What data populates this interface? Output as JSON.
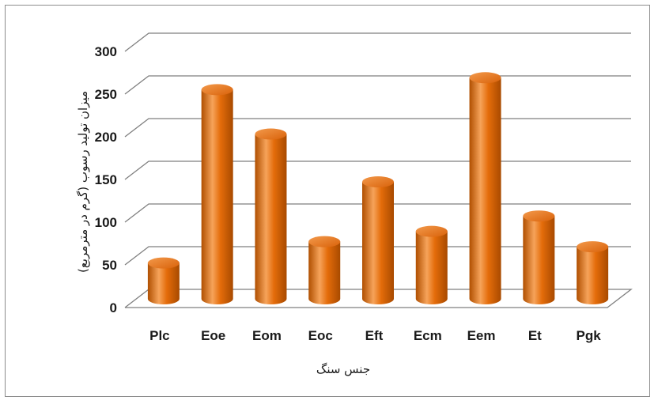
{
  "chart_data": {
    "type": "bar",
    "style": "3d-cylinder",
    "categories": [
      "Plc",
      "Eoe",
      "Eom",
      "Eoc",
      "Eft",
      "Ecm",
      "Eem",
      "Et",
      "Pgk"
    ],
    "values": [
      42,
      245,
      193,
      67,
      137,
      79,
      259,
      97,
      61
    ],
    "title": "",
    "xlabel": "جنس سنگ",
    "ylabel": "میزان تولید رسوب (گرم در مترمربع)",
    "ylim": [
      0,
      300
    ],
    "yticks": [
      "0",
      "50",
      "100",
      "150",
      "200",
      "250",
      "300"
    ],
    "grid": true,
    "legend": "none",
    "colors": {
      "bar": "#e46c0a",
      "bar_light": "#f6a35a",
      "bar_dark": "#b04f00",
      "grid": "#7f7f7f"
    }
  }
}
